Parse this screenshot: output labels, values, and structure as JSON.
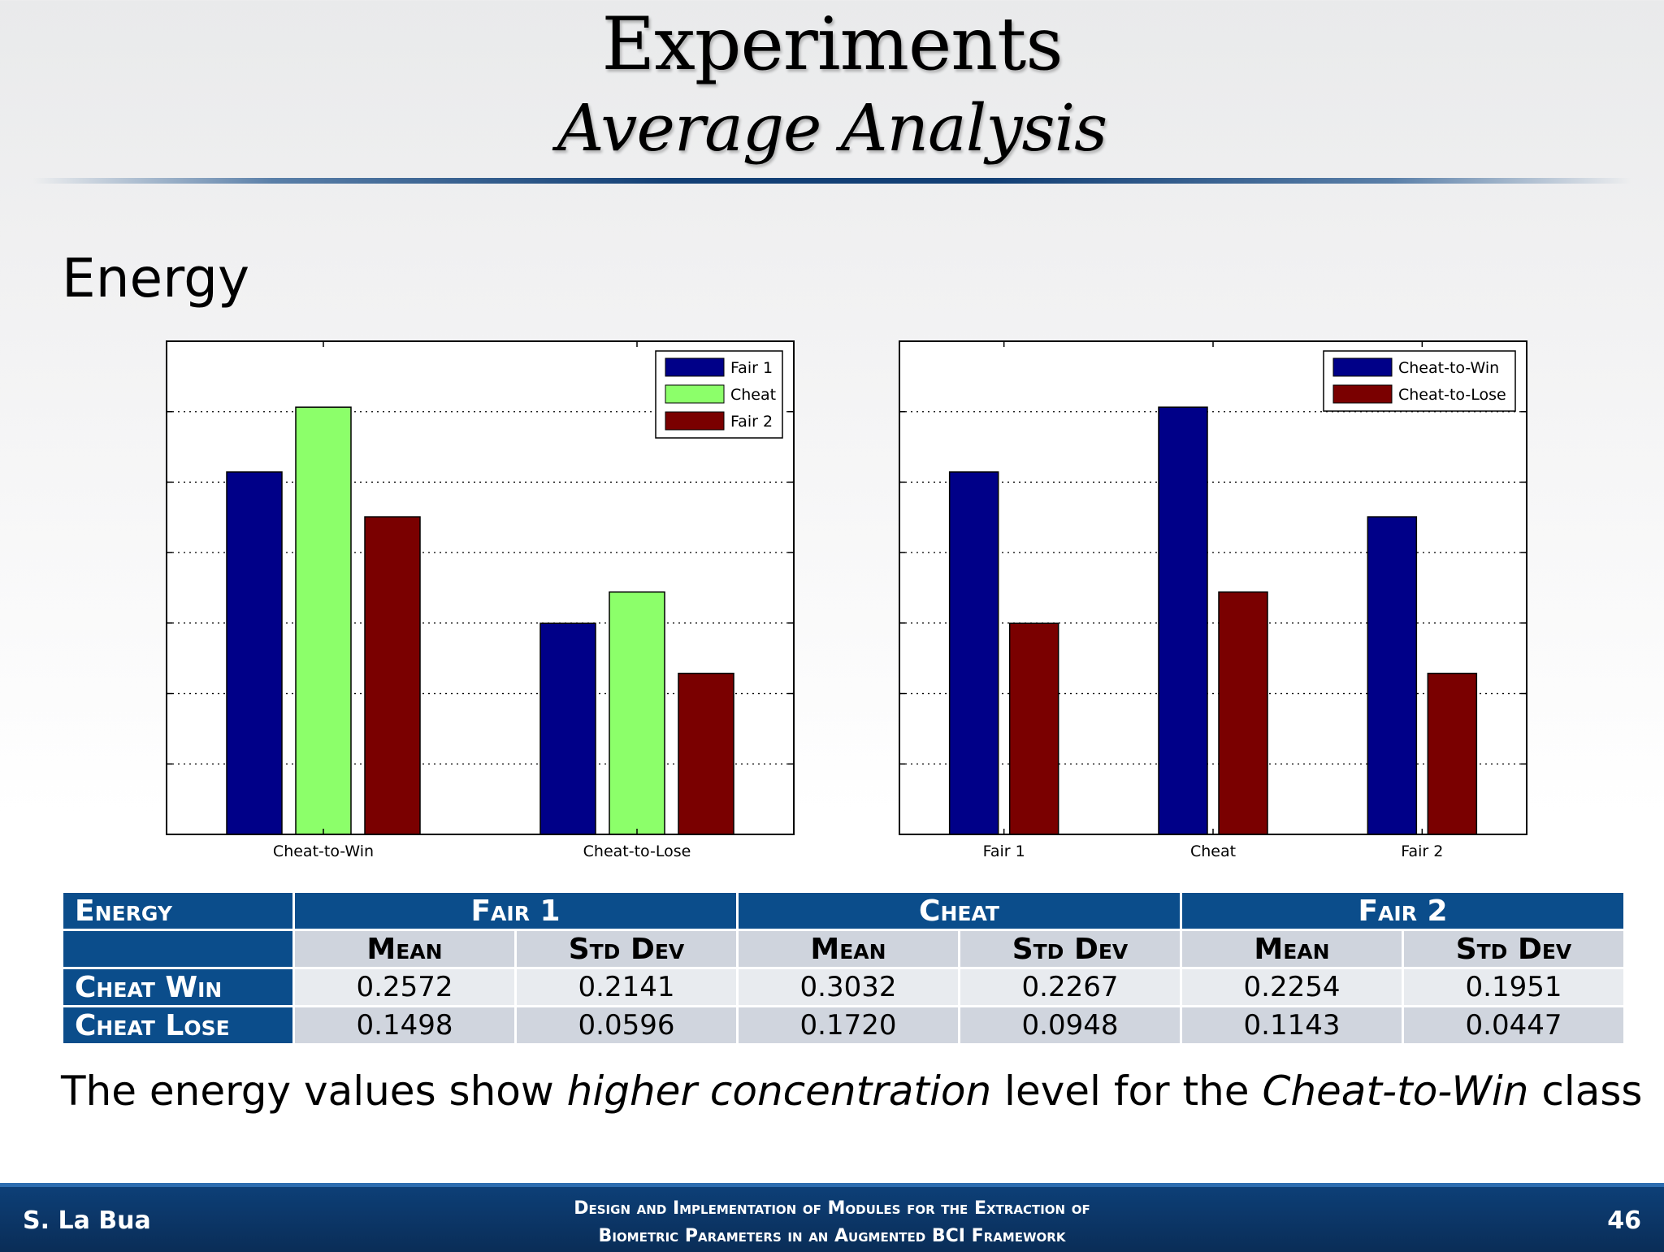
{
  "slide": {
    "title": "Experiments",
    "subtitle": "Average Analysis",
    "section": "Energy",
    "summary_pre": "The energy values show ",
    "summary_em1": "higher concentration",
    "summary_mid": " level for the ",
    "summary_em2": "Cheat-to-Win",
    "summary_post": " class"
  },
  "footer": {
    "author": "S. La Bua",
    "line1": "Design and Implementation of Modules for the Extraction of",
    "line2": "Biometric Parameters in an Augmented BCI Framework",
    "page": "46"
  },
  "colors": {
    "fair1": "#000088",
    "cheat": "#8cff6a",
    "fair2": "#7a0000",
    "cheat_win": "#000088",
    "cheat_lose": "#7a0000"
  },
  "table": {
    "corner": "Energy",
    "groups": [
      "Fair 1",
      "Cheat",
      "Fair 2"
    ],
    "subheaders": [
      "Mean",
      "Std Dev",
      "Mean",
      "Std Dev",
      "Mean",
      "Std Dev"
    ],
    "rows": [
      {
        "label": "Cheat Win",
        "values": [
          "0.2572",
          "0.2141",
          "0.3032",
          "0.2267",
          "0.2254",
          "0.1951"
        ]
      },
      {
        "label": "Cheat Lose",
        "values": [
          "0.1498",
          "0.0596",
          "0.1720",
          "0.0948",
          "0.1143",
          "0.0447"
        ]
      }
    ]
  },
  "chart_data": [
    {
      "type": "bar",
      "title": "",
      "xlabel": "",
      "ylabel": "",
      "categories": [
        "Cheat-to-Win",
        "Cheat-to-Lose"
      ],
      "series": [
        {
          "name": "Fair 1",
          "values": [
            0.2572,
            0.1498
          ]
        },
        {
          "name": "Cheat",
          "values": [
            0.3032,
            0.172
          ]
        },
        {
          "name": "Fair 2",
          "values": [
            0.2254,
            0.1143
          ]
        }
      ],
      "ylim": [
        0,
        0.35
      ],
      "grid": true,
      "legend": "top-right"
    },
    {
      "type": "bar",
      "title": "",
      "xlabel": "",
      "ylabel": "",
      "categories": [
        "Fair 1",
        "Cheat",
        "Fair 2"
      ],
      "series": [
        {
          "name": "Cheat-to-Win",
          "values": [
            0.2572,
            0.3032,
            0.2254
          ]
        },
        {
          "name": "Cheat-to-Lose",
          "values": [
            0.1498,
            0.172,
            0.1143
          ]
        }
      ],
      "ylim": [
        0,
        0.35
      ],
      "grid": true,
      "legend": "top-right"
    }
  ]
}
